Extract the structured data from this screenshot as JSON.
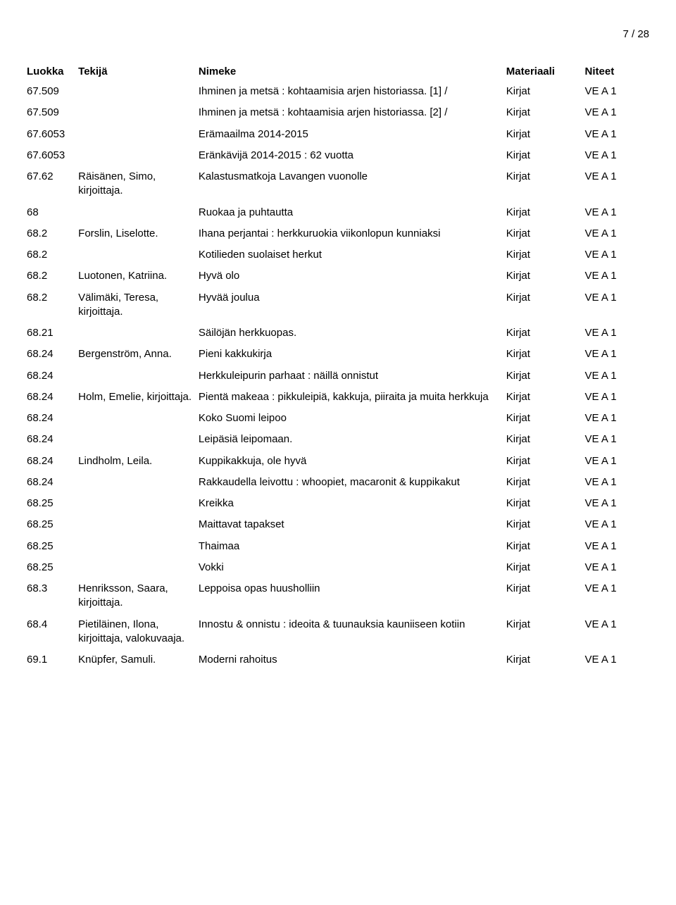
{
  "page_number": "7 / 28",
  "headers": {
    "luokka": "Luokka",
    "tekija": "Tekijä",
    "nimeke": "Nimeke",
    "materiaali": "Materiaali",
    "niteet": "Niteet"
  },
  "rows": [
    {
      "luokka": "67.509",
      "tekija": "",
      "nimeke": "Ihminen ja metsä : kohtaamisia arjen historiassa. [1] /",
      "materiaali": "Kirjat",
      "niteet": "VE A 1"
    },
    {
      "luokka": "67.509",
      "tekija": "",
      "nimeke": "Ihminen ja metsä : kohtaamisia arjen historiassa. [2] /",
      "materiaali": "Kirjat",
      "niteet": "VE A 1"
    },
    {
      "luokka": "67.6053",
      "tekija": "",
      "nimeke": "Erämaailma 2014-2015",
      "materiaali": "Kirjat",
      "niteet": "VE A 1"
    },
    {
      "luokka": "67.6053",
      "tekija": "",
      "nimeke": "Eränkävijä 2014-2015 : 62 vuotta",
      "materiaali": "Kirjat",
      "niteet": "VE A 1"
    },
    {
      "luokka": "67.62",
      "tekija": "Räisänen, Simo, kirjoittaja.",
      "nimeke": "Kalastusmatkoja Lavangen vuonolle",
      "materiaali": "Kirjat",
      "niteet": "VE A 1"
    },
    {
      "luokka": "68",
      "tekija": "",
      "nimeke": "Ruokaa ja puhtautta",
      "materiaali": "Kirjat",
      "niteet": "VE A 1"
    },
    {
      "luokka": "68.2",
      "tekija": "Forslin, Liselotte.",
      "nimeke": "Ihana perjantai : herkkuruokia viikonlopun kunniaksi",
      "materiaali": "Kirjat",
      "niteet": "VE A 1"
    },
    {
      "luokka": "68.2",
      "tekija": "",
      "nimeke": "Kotilieden suolaiset herkut",
      "materiaali": "Kirjat",
      "niteet": "VE A 1"
    },
    {
      "luokka": "68.2",
      "tekija": "Luotonen, Katriina.",
      "nimeke": "Hyvä olo",
      "materiaali": "Kirjat",
      "niteet": "VE A 1"
    },
    {
      "luokka": "68.2",
      "tekija": "Välimäki, Teresa, kirjoittaja.",
      "nimeke": "Hyvää joulua",
      "materiaali": "Kirjat",
      "niteet": "VE A 1"
    },
    {
      "luokka": "68.21",
      "tekija": "",
      "nimeke": "Säilöjän herkkuopas.",
      "materiaali": "Kirjat",
      "niteet": "VE A 1"
    },
    {
      "luokka": "68.24",
      "tekija": "Bergenström, Anna.",
      "nimeke": "Pieni kakkukirja",
      "materiaali": "Kirjat",
      "niteet": "VE A 1"
    },
    {
      "luokka": "68.24",
      "tekija": "",
      "nimeke": "Herkkuleipurin parhaat : näillä onnistut",
      "materiaali": "Kirjat",
      "niteet": "VE A 1"
    },
    {
      "luokka": "68.24",
      "tekija": "Holm, Emelie, kirjoittaja.",
      "nimeke": "Pientä makeaa : pikkuleipiä, kakkuja, piiraita ja muita herkkuja",
      "materiaali": "Kirjat",
      "niteet": "VE A 1"
    },
    {
      "luokka": "68.24",
      "tekija": "",
      "nimeke": "Koko Suomi leipoo",
      "materiaali": "Kirjat",
      "niteet": "VE A 1"
    },
    {
      "luokka": "68.24",
      "tekija": "",
      "nimeke": "Leipäsiä leipomaan.",
      "materiaali": "Kirjat",
      "niteet": "VE A 1"
    },
    {
      "luokka": "68.24",
      "tekija": "Lindholm, Leila.",
      "nimeke": "Kuppikakkuja, ole hyvä",
      "materiaali": "Kirjat",
      "niteet": "VE A 1"
    },
    {
      "luokka": "68.24",
      "tekija": "",
      "nimeke": "Rakkaudella leivottu : whoopiet, macaronit & kuppikakut",
      "materiaali": "Kirjat",
      "niteet": "VE A 1"
    },
    {
      "luokka": "68.25",
      "tekija": "",
      "nimeke": "Kreikka",
      "materiaali": "Kirjat",
      "niteet": "VE A 1"
    },
    {
      "luokka": "68.25",
      "tekija": "",
      "nimeke": "Maittavat tapakset",
      "materiaali": "Kirjat",
      "niteet": "VE A 1"
    },
    {
      "luokka": "68.25",
      "tekija": "",
      "nimeke": "Thaimaa",
      "materiaali": "Kirjat",
      "niteet": "VE A 1"
    },
    {
      "luokka": "68.25",
      "tekija": "",
      "nimeke": "Vokki",
      "materiaali": "Kirjat",
      "niteet": "VE A 1"
    },
    {
      "luokka": "68.3",
      "tekija": "Henriksson, Saara, kirjoittaja.",
      "nimeke": "Leppoisa opas huusholliin",
      "materiaali": "Kirjat",
      "niteet": "VE A 1"
    },
    {
      "luokka": "68.4",
      "tekija": "Pietiläinen, Ilona, kirjoittaja, valokuvaaja.",
      "nimeke": "Innostu & onnistu : ideoita & tuunauksia kauniiseen kotiin",
      "materiaali": "Kirjat",
      "niteet": "VE A 1"
    },
    {
      "luokka": "69.1",
      "tekija": "Knüpfer, Samuli.",
      "nimeke": "Moderni rahoitus",
      "materiaali": "Kirjat",
      "niteet": "VE A 1"
    }
  ]
}
